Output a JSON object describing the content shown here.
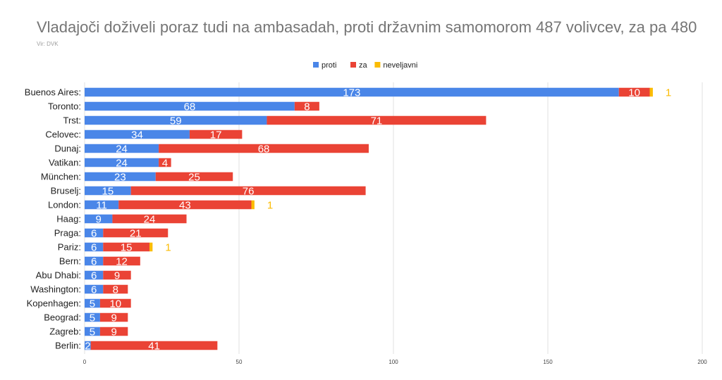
{
  "title": "Vladajoči doživeli poraz tudi na ambasadah, proti državnim samomorom 487 volivcev, za pa 480",
  "source": "Vir: DVK",
  "colors": {
    "proti": "#4a86e8",
    "za": "#ea4335",
    "neveljavni": "#fbbc04",
    "grid": "#e0e0e0"
  },
  "chart_data": {
    "type": "bar",
    "orientation": "horizontal",
    "stacked": true,
    "categories": [
      "Buenos Aires:",
      "Toronto:",
      "Trst:",
      "Celovec:",
      "Dunaj:",
      "Vatikan:",
      "München:",
      "Bruselj:",
      "London:",
      "Haag:",
      "Praga:",
      "Pariz:",
      "Bern:",
      "Abu Dhabi:",
      "Washington:",
      "Kopenhagen:",
      "Beograd:",
      "Zagreb:",
      "Berlin:"
    ],
    "series": [
      {
        "name": "proti",
        "values": [
          173,
          68,
          59,
          34,
          24,
          24,
          23,
          15,
          11,
          9,
          6,
          6,
          6,
          6,
          6,
          5,
          5,
          5,
          2
        ]
      },
      {
        "name": "za",
        "values": [
          10,
          8,
          71,
          17,
          68,
          4,
          25,
          76,
          43,
          24,
          21,
          15,
          12,
          9,
          8,
          10,
          9,
          9,
          41
        ]
      },
      {
        "name": "neveljavni",
        "values": [
          1,
          0,
          0,
          0,
          0,
          0,
          0,
          0,
          1,
          0,
          0,
          1,
          0,
          0,
          0,
          0,
          0,
          0,
          0
        ]
      }
    ],
    "xlim": [
      0,
      200
    ],
    "xticks": [
      0,
      50,
      100,
      150,
      200
    ],
    "grid": true,
    "legend_position": "top-center"
  }
}
